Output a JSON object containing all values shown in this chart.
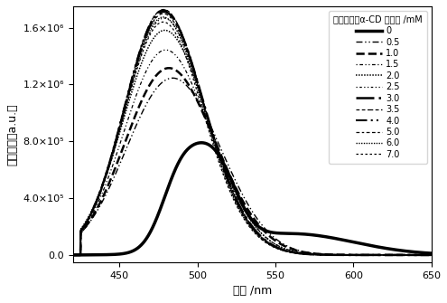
{
  "title": "混合溶液中α-CD 的浓度 /mM",
  "xlabel": "波长 /nm",
  "ylabel": "发射强度（a.u.）",
  "xlim": [
    420,
    650
  ],
  "ylim_low": -50000,
  "ylim_high": 1750000,
  "ytick_vals": [
    0,
    400000,
    800000,
    1200000,
    1600000
  ],
  "ytick_labels": [
    "0.0",
    "4.0×10⁵",
    "8.0×10⁵",
    "1.2×10⁶",
    "1.6×10⁶"
  ],
  "xtick_vals": [
    450,
    500,
    550,
    600,
    650
  ],
  "labels": [
    "0",
    "0.5",
    "1.0",
    "1.5",
    "2.0",
    "2.5",
    "3.0",
    "3.5",
    "4.0",
    "5.0",
    "6.0",
    "7.0"
  ],
  "linewidths": [
    2.5,
    1.0,
    1.8,
    0.9,
    1.1,
    0.9,
    1.8,
    0.9,
    1.5,
    0.9,
    1.0,
    0.9
  ],
  "series_params": [
    null,
    [
      1050000,
      478,
      27,
      350000,
      508,
      25
    ],
    [
      1150000,
      477,
      26,
      320000,
      508,
      25
    ],
    [
      1300000,
      476,
      25,
      300000,
      507,
      24
    ],
    [
      1450000,
      476,
      25,
      280000,
      507,
      24
    ],
    [
      1550000,
      476,
      24,
      270000,
      507,
      23
    ],
    [
      1600000,
      476,
      24,
      260000,
      507,
      23
    ],
    [
      1620000,
      476,
      24,
      250000,
      507,
      23
    ],
    [
      1620000,
      476,
      24,
      240000,
      507,
      23
    ],
    [
      1600000,
      476,
      24,
      230000,
      507,
      23
    ],
    [
      1580000,
      476,
      24,
      220000,
      507,
      23
    ],
    [
      1550000,
      476,
      24,
      210000,
      507,
      23
    ]
  ]
}
